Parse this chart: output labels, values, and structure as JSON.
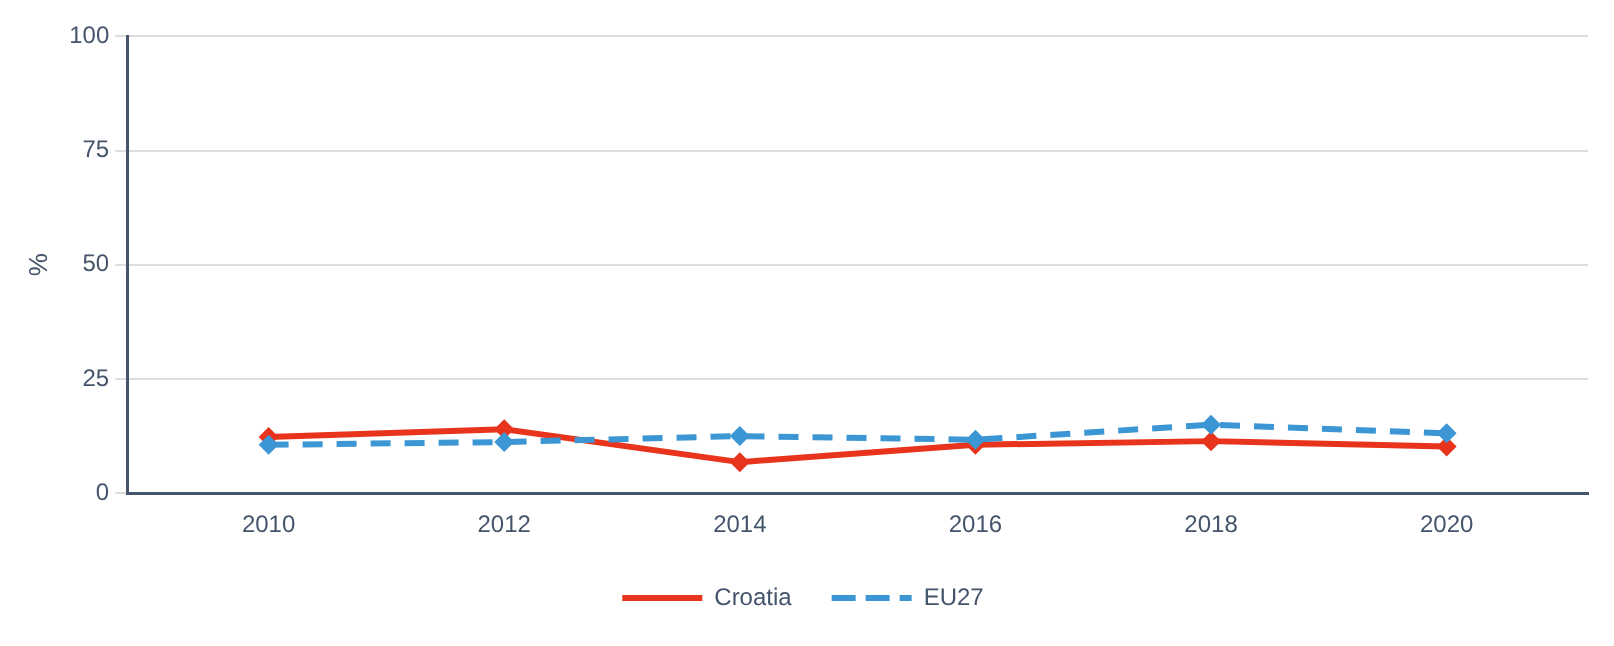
{
  "chart_data": {
    "type": "line",
    "ylabel": "%",
    "x": [
      2010,
      2012,
      2014,
      2016,
      2018,
      2020
    ],
    "series": [
      {
        "name": "Croatia",
        "color": "#e8341c",
        "values": [
          12.3,
          14,
          6.8,
          10.6,
          11.4,
          10.2
        ],
        "line_style": "solid"
      },
      {
        "name": "EU27",
        "color": "#3d96d4",
        "values": [
          10.6,
          11.2,
          12.5,
          11.7,
          15,
          13.1
        ],
        "line_style": "dashed"
      }
    ],
    "xlim": [
      2008.8,
      2021.2
    ],
    "xticks": [
      2010,
      2012,
      2014,
      2016,
      2018,
      2020
    ],
    "ylim": [
      0,
      100
    ],
    "yticks": [
      0,
      25,
      50,
      75,
      100
    ],
    "grid": "y",
    "legend": "bottom",
    "marker": "diamond"
  }
}
